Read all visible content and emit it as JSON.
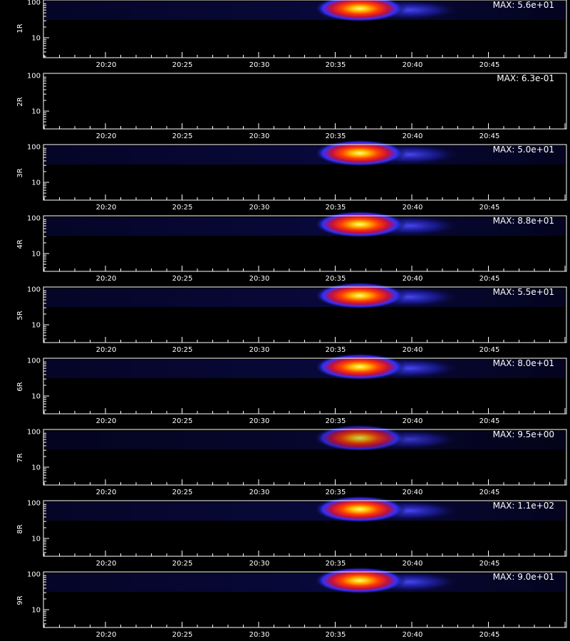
{
  "chart_data": {
    "type": "heatmap",
    "x_tick_labels": [
      "20:20",
      "20:25",
      "20:30",
      "20:35",
      "20:40",
      "20:45"
    ],
    "y_tick_labels": [
      "10",
      "100"
    ],
    "x_axis_title": "",
    "colormap": [
      "#000000",
      "#0a0a4a",
      "#1a1ab4",
      "#3c3cff",
      "#b4143c",
      "#ff3c00",
      "#ffb400",
      "#ffff64"
    ],
    "panels": [
      {
        "label": "1R",
        "max_text": "MAX: 5.6e+01",
        "intensity": 1.0
      },
      {
        "label": "2R",
        "max_text": "MAX: 6.3e-01",
        "intensity": 0.0
      },
      {
        "label": "3R",
        "max_text": "MAX: 5.0e+01",
        "intensity": 1.0
      },
      {
        "label": "4R",
        "max_text": "MAX: 8.8e+01",
        "intensity": 1.0
      },
      {
        "label": "5R",
        "max_text": "MAX: 5.5e+01",
        "intensity": 1.0
      },
      {
        "label": "6R",
        "max_text": "MAX: 8.0e+01",
        "intensity": 1.0
      },
      {
        "label": "7R",
        "max_text": "MAX: 9.5e+00",
        "intensity": 0.8
      },
      {
        "label": "8R",
        "max_text": "MAX: 1.1e+02",
        "intensity": 1.0
      },
      {
        "label": "9R",
        "max_text": "MAX: 9.0e+01",
        "intensity": 1.0
      }
    ]
  }
}
